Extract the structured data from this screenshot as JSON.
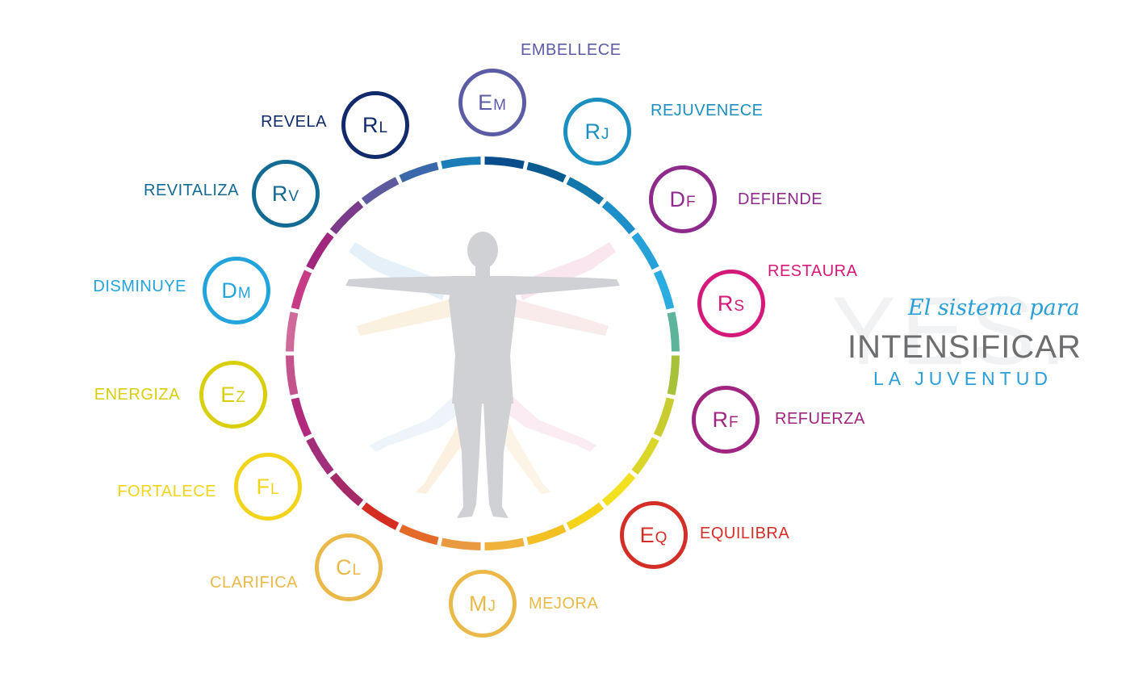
{
  "ring_segment_colors": [
    "#0a4d8c",
    "#0a5b90",
    "#1277aa",
    "#1d8ec8",
    "#26a2d9",
    "#2aace0",
    "#5cb59a",
    "#a7c13b",
    "#c8cc2e",
    "#dbd62a",
    "#f3e121",
    "#f5d318",
    "#f2c023",
    "#efb33b",
    "#ea9a3e",
    "#e46a2a",
    "#d42d22",
    "#a62a66",
    "#a12d7b",
    "#b12a7e",
    "#c4528c",
    "#d06a9a",
    "#c63a86",
    "#a0267e",
    "#7a3c8a",
    "#5d5aa0",
    "#3b68aa",
    "#1b7db8"
  ],
  "nodes": [
    {
      "id": "em",
      "big": "E",
      "small": "M",
      "word": "EMBELLECE",
      "color": "#5b5ba6"
    },
    {
      "id": "rj",
      "big": "R",
      "small": "J",
      "word": "REJUVENECE",
      "color": "#1a8fc0"
    },
    {
      "id": "df",
      "big": "D",
      "small": "F",
      "word": "DEFIENDE",
      "color": "#8e2a8b"
    },
    {
      "id": "rs",
      "big": "R",
      "small": "S",
      "word": "RESTAURA",
      "color": "#d4197a"
    },
    {
      "id": "rf",
      "big": "R",
      "small": "F",
      "word": "REFUERZA",
      "color": "#a02580"
    },
    {
      "id": "eq",
      "big": "E",
      "small": "Q",
      "word": "EQUILIBRA",
      "color": "#d32f26"
    },
    {
      "id": "mj",
      "big": "M",
      "small": "J",
      "word": "MEJORA",
      "color": "#eab94a"
    },
    {
      "id": "cl",
      "big": "C",
      "small": "L",
      "word": "CLARIFICA",
      "color": "#eab94a"
    },
    {
      "id": "fl",
      "big": "F",
      "small": "L",
      "word": "FORTALECE",
      "color": "#f2d41c"
    },
    {
      "id": "ez",
      "big": "E",
      "small": "Z",
      "word": "ENERGIZA",
      "color": "#d9cf0c"
    },
    {
      "id": "dm",
      "big": "D",
      "small": "M",
      "word": "DISMINUYE",
      "color": "#24a4dc"
    },
    {
      "id": "rv",
      "big": "R",
      "small": "V",
      "word": "REVITALIZA",
      "color": "#136a92"
    },
    {
      "id": "rl",
      "big": "R",
      "small": "L",
      "word": "REVELA",
      "color": "#112a6b"
    }
  ],
  "tagline": {
    "watermark": "YES.",
    "script": "El sistema para",
    "main": "INTENSIFICAR",
    "sub": "LA JUVENTUD"
  }
}
